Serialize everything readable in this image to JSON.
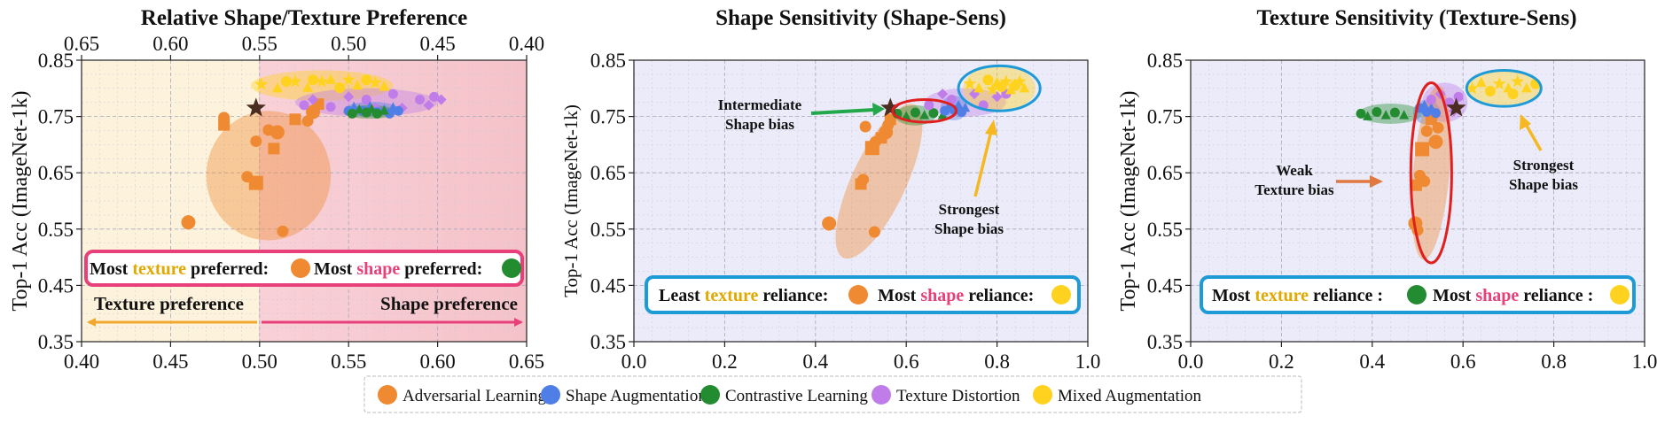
{
  "chart_data": [
    {
      "type": "scatter",
      "title": "Relative Shape/Texture Preference",
      "ylabel": "Top-1 Acc (ImageNet-1k)",
      "xlabel": "",
      "xlim": [
        0.4,
        0.65
      ],
      "ylim": [
        0.35,
        0.85
      ],
      "x_ticks": [
        "0.40",
        "0.45",
        "0.50",
        "0.55",
        "0.60",
        "0.65"
      ],
      "x2_ticks": [
        "0.65",
        "0.60",
        "0.55",
        "0.50",
        "0.45",
        "0.40"
      ],
      "y_ticks": [
        "0.35",
        "0.45",
        "0.55",
        "0.65",
        "0.75",
        "0.85"
      ],
      "regions": [
        {
          "name": "Texture preference",
          "x_range": [
            0.4,
            0.5
          ],
          "color": "#fdf3dc"
        },
        {
          "name": "Shape preference",
          "x_range": [
            0.5,
            0.65
          ],
          "color": "#f7cdd2"
        }
      ],
      "arrow_labels": {
        "left": "Texture preference",
        "right": "Shape preference"
      },
      "callout": {
        "p1": "Most ",
        "k1": "texture",
        "p2": " preferred:",
        "p3": "Most ",
        "k2": "shape",
        "p4": " preferred:"
      },
      "baseline": {
        "x": 0.498,
        "y": 0.765
      },
      "ellipses": [
        {
          "group": "Adversarial Learning",
          "cx": 0.505,
          "cy": 0.645,
          "rx": 0.035,
          "ry": 0.115,
          "angle": 0
        },
        {
          "group": "Mixed Augmentation",
          "cx": 0.535,
          "cy": 0.805,
          "rx": 0.04,
          "ry": 0.027,
          "angle": 0
        },
        {
          "group": "Texture Distortion",
          "cx": 0.56,
          "cy": 0.775,
          "rx": 0.04,
          "ry": 0.025,
          "angle": 0
        },
        {
          "group": "Shape Augmentation",
          "cx": 0.563,
          "cy": 0.763,
          "rx": 0.015,
          "ry": 0.013,
          "angle": 0
        },
        {
          "group": "Contrastive Learning",
          "cx": 0.562,
          "cy": 0.758,
          "rx": 0.015,
          "ry": 0.012,
          "angle": 0
        }
      ],
      "series": [
        {
          "name": "Adversarial Learning",
          "points": [
            [
              0.46,
              0.562
            ],
            [
              0.48,
              0.735
            ],
            [
              0.48,
              0.748
            ],
            [
              0.493,
              0.643
            ],
            [
              0.498,
              0.632
            ],
            [
              0.498,
              0.706
            ],
            [
              0.505,
              0.726
            ],
            [
              0.508,
              0.693
            ],
            [
              0.51,
              0.722
            ],
            [
              0.513,
              0.546
            ],
            [
              0.52,
              0.745
            ],
            [
              0.527,
              0.742
            ],
            [
              0.53,
              0.758
            ],
            [
              0.533,
              0.772
            ]
          ]
        },
        {
          "name": "Mixed Augmentation",
          "points": [
            [
              0.501,
              0.807
            ],
            [
              0.51,
              0.8
            ],
            [
              0.515,
              0.812
            ],
            [
              0.52,
              0.812
            ],
            [
              0.527,
              0.801
            ],
            [
              0.53,
              0.815
            ],
            [
              0.535,
              0.812
            ],
            [
              0.54,
              0.815
            ],
            [
              0.545,
              0.801
            ],
            [
              0.55,
              0.815
            ],
            [
              0.555,
              0.805
            ],
            [
              0.56,
              0.815
            ],
            [
              0.565,
              0.81
            ],
            [
              0.57,
              0.803
            ]
          ]
        },
        {
          "name": "Texture Distortion",
          "points": [
            [
              0.525,
              0.77
            ],
            [
              0.53,
              0.78
            ],
            [
              0.54,
              0.767
            ],
            [
              0.55,
              0.785
            ],
            [
              0.56,
              0.78
            ],
            [
              0.565,
              0.765
            ],
            [
              0.575,
              0.79
            ],
            [
              0.58,
              0.765
            ],
            [
              0.59,
              0.78
            ],
            [
              0.595,
              0.77
            ],
            [
              0.598,
              0.785
            ],
            [
              0.602,
              0.78
            ]
          ]
        },
        {
          "name": "Shape Augmentation",
          "points": [
            [
              0.55,
              0.76
            ],
            [
              0.553,
              0.767
            ],
            [
              0.558,
              0.76
            ],
            [
              0.562,
              0.768
            ],
            [
              0.566,
              0.758
            ],
            [
              0.57,
              0.762
            ],
            [
              0.573,
              0.755
            ],
            [
              0.575,
              0.766
            ],
            [
              0.578,
              0.76
            ]
          ]
        },
        {
          "name": "Contrastive Learning",
          "points": [
            [
              0.552,
              0.755
            ],
            [
              0.556,
              0.762
            ],
            [
              0.56,
              0.757
            ],
            [
              0.563,
              0.763
            ],
            [
              0.566,
              0.755
            ],
            [
              0.57,
              0.76
            ]
          ]
        }
      ]
    },
    {
      "type": "scatter",
      "title": "Shape Sensitivity (Shape-Sens)",
      "ylabel": "Top-1 Acc (ImageNet-1k)",
      "xlabel": "",
      "xlim": [
        0.0,
        1.0
      ],
      "ylim": [
        0.35,
        0.85
      ],
      "x_ticks": [
        "0.0",
        "0.2",
        "0.4",
        "0.6",
        "0.8",
        "1.0"
      ],
      "y_ticks": [
        "0.35",
        "0.45",
        "0.55",
        "0.65",
        "0.75",
        "0.85"
      ],
      "annotations": [
        {
          "line1": "Intermediate",
          "line2": "Shape bias"
        },
        {
          "line1": "Strongest",
          "line2": "Shape bias"
        }
      ],
      "callout": {
        "p1": "Least ",
        "k1": "texture",
        "p2": " reliance:",
        "p3": "Most ",
        "k2": "shape",
        "p4": " reliance:"
      },
      "baseline": {
        "x": 0.565,
        "y": 0.765
      },
      "ellipses": [
        {
          "group": "Adversarial Learning",
          "cx": 0.54,
          "cy": 0.635,
          "rx": 0.06,
          "ry": 0.15,
          "angle": 25
        },
        {
          "group": "Texture Distortion",
          "cx": 0.73,
          "cy": 0.775,
          "rx": 0.09,
          "ry": 0.025,
          "angle": 0
        },
        {
          "group": "Shape Augmentation",
          "cx": 0.705,
          "cy": 0.765,
          "rx": 0.03,
          "ry": 0.022,
          "angle": 0
        },
        {
          "group": "Contrastive Learning",
          "cx": 0.62,
          "cy": 0.752,
          "rx": 0.045,
          "ry": 0.018,
          "angle": 0
        },
        {
          "group": "Mixed Augmentation",
          "cx": 0.805,
          "cy": 0.8,
          "rx": 0.08,
          "ry": 0.04,
          "angle": 0
        }
      ],
      "highlights": [
        {
          "cx": 0.64,
          "cy": 0.76,
          "rx": 0.07,
          "ry": 0.02,
          "color": "#e01f1f"
        },
        {
          "cx": 0.805,
          "cy": 0.8,
          "rx": 0.09,
          "ry": 0.04,
          "color": "#1e9bd7"
        }
      ],
      "series": [
        {
          "name": "Adversarial Learning",
          "points": [
            [
              0.43,
              0.56
            ],
            [
              0.5,
              0.63
            ],
            [
              0.505,
              0.638
            ],
            [
              0.51,
              0.732
            ],
            [
              0.525,
              0.694
            ],
            [
              0.53,
              0.545
            ],
            [
              0.532,
              0.705
            ],
            [
              0.545,
              0.712
            ],
            [
              0.555,
              0.722
            ],
            [
              0.56,
              0.735
            ],
            [
              0.565,
              0.745
            ]
          ]
        },
        {
          "name": "Contrastive Learning",
          "points": [
            [
              0.58,
              0.755
            ],
            [
              0.6,
              0.75
            ],
            [
              0.62,
              0.757
            ],
            [
              0.64,
              0.752
            ],
            [
              0.66,
              0.756
            ],
            [
              0.68,
              0.752
            ]
          ]
        },
        {
          "name": "Shape Augmentation",
          "points": [
            [
              0.685,
              0.76
            ],
            [
              0.695,
              0.77
            ],
            [
              0.705,
              0.762
            ],
            [
              0.715,
              0.77
            ],
            [
              0.722,
              0.758
            ],
            [
              0.73,
              0.765
            ]
          ]
        },
        {
          "name": "Texture Distortion",
          "points": [
            [
              0.65,
              0.77
            ],
            [
              0.68,
              0.79
            ],
            [
              0.7,
              0.78
            ],
            [
              0.75,
              0.79
            ],
            [
              0.77,
              0.77
            ],
            [
              0.8,
              0.785
            ],
            [
              0.82,
              0.79
            ]
          ]
        },
        {
          "name": "Mixed Augmentation",
          "points": [
            [
              0.74,
              0.808
            ],
            [
              0.76,
              0.8
            ],
            [
              0.78,
              0.815
            ],
            [
              0.79,
              0.798
            ],
            [
              0.8,
              0.81
            ],
            [
              0.81,
              0.803
            ],
            [
              0.82,
              0.812
            ],
            [
              0.83,
              0.797
            ],
            [
              0.84,
              0.805
            ],
            [
              0.85,
              0.812
            ],
            [
              0.86,
              0.8
            ]
          ]
        }
      ]
    },
    {
      "type": "scatter",
      "title": "Texture Sensitivity (Texture-Sens)",
      "ylabel": "Top-1 Acc (ImageNet-1k)",
      "xlabel": "",
      "xlim": [
        0.0,
        1.0
      ],
      "ylim": [
        0.35,
        0.85
      ],
      "x_ticks": [
        "0.0",
        "0.2",
        "0.4",
        "0.6",
        "0.8",
        "1.0"
      ],
      "y_ticks": [
        "0.35",
        "0.45",
        "0.55",
        "0.65",
        "0.75",
        "0.85"
      ],
      "annotations": [
        {
          "line1": "Weak",
          "line2": "Texture bias"
        },
        {
          "line1": "Strongest",
          "line2": "Shape bias"
        }
      ],
      "callout": {
        "p1": "Most ",
        "k1": "texture",
        "p2": " reliance :",
        "p3": "Most ",
        "k2": "shape",
        "p4": " reliance :"
      },
      "baseline": {
        "x": 0.585,
        "y": 0.765
      },
      "ellipses": [
        {
          "group": "Contrastive Learning",
          "cx": 0.44,
          "cy": 0.755,
          "rx": 0.07,
          "ry": 0.018,
          "angle": 0
        },
        {
          "group": "Shape Augmentation",
          "cx": 0.52,
          "cy": 0.758,
          "rx": 0.03,
          "ry": 0.022,
          "angle": 0
        },
        {
          "group": "Texture Distortion",
          "cx": 0.56,
          "cy": 0.775,
          "rx": 0.05,
          "ry": 0.035,
          "angle": 0
        },
        {
          "group": "Mixed Augmentation",
          "cx": 0.69,
          "cy": 0.8,
          "rx": 0.08,
          "ry": 0.03,
          "angle": 0
        },
        {
          "group": "Adversarial Learning",
          "cx": 0.53,
          "cy": 0.65,
          "rx": 0.04,
          "ry": 0.155,
          "angle": 5
        }
      ],
      "highlights": [
        {
          "cx": 0.53,
          "cy": 0.65,
          "rx": 0.045,
          "ry": 0.16,
          "color": "#e01f1f"
        },
        {
          "cx": 0.69,
          "cy": 0.8,
          "rx": 0.082,
          "ry": 0.032,
          "color": "#1e9bd7"
        }
      ],
      "series": [
        {
          "name": "Adversarial Learning",
          "points": [
            [
              0.495,
              0.56
            ],
            [
              0.497,
              0.628
            ],
            [
              0.5,
              0.548
            ],
            [
              0.505,
              0.645
            ],
            [
              0.51,
              0.692
            ],
            [
              0.515,
              0.635
            ],
            [
              0.52,
              0.724
            ],
            [
              0.53,
              0.745
            ],
            [
              0.54,
              0.705
            ],
            [
              0.545,
              0.73
            ]
          ]
        },
        {
          "name": "Contrastive Learning",
          "points": [
            [
              0.375,
              0.755
            ],
            [
              0.39,
              0.75
            ],
            [
              0.41,
              0.758
            ],
            [
              0.43,
              0.752
            ],
            [
              0.45,
              0.757
            ],
            [
              0.47,
              0.752
            ]
          ]
        },
        {
          "name": "Shape Augmentation",
          "points": [
            [
              0.505,
              0.765
            ],
            [
              0.515,
              0.77
            ],
            [
              0.52,
              0.758
            ],
            [
              0.53,
              0.765
            ],
            [
              0.54,
              0.756
            ]
          ]
        },
        {
          "name": "Texture Distortion",
          "points": [
            [
              0.53,
              0.78
            ],
            [
              0.55,
              0.79
            ],
            [
              0.57,
              0.775
            ],
            [
              0.58,
              0.76
            ],
            [
              0.59,
              0.785
            ]
          ]
        },
        {
          "name": "Mixed Augmentation",
          "points": [
            [
              0.62,
              0.8
            ],
            [
              0.64,
              0.81
            ],
            [
              0.66,
              0.795
            ],
            [
              0.68,
              0.808
            ],
            [
              0.7,
              0.8
            ],
            [
              0.71,
              0.79
            ],
            [
              0.72,
              0.812
            ],
            [
              0.74,
              0.8
            ],
            [
              0.76,
              0.808
            ]
          ]
        }
      ]
    }
  ],
  "legend": {
    "items": [
      {
        "label": "Adversarial Learning",
        "color": "#ef8a32"
      },
      {
        "label": "Shape Augmentation",
        "color": "#4f7fe6"
      },
      {
        "label": "Contrastive Learning",
        "color": "#238b30"
      },
      {
        "label": "Texture Distortion",
        "color": "#c07ce8"
      },
      {
        "label": "Mixed Augmentation",
        "color": "#ffd21f"
      }
    ]
  },
  "colors": {
    "adversarial": "#ef8a32",
    "shape_aug": "#4f7fe6",
    "contrastive": "#238b30",
    "texture_dist": "#c07ce8",
    "mixed": "#ffd21f",
    "texture_word": "#e0a800",
    "shape_word": "#e8407a",
    "callout_border_1": "#e8407a",
    "callout_border_2": "#1e9bd7",
    "plot_bg_2": "#ebebf9",
    "baseline": "#4a2c20"
  }
}
